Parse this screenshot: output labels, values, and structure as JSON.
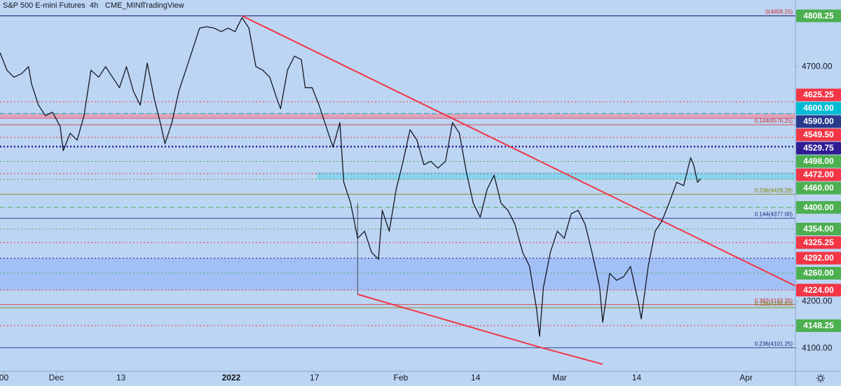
{
  "chart_data": {
    "type": "line",
    "title": "S&P 500 E-mini Futures",
    "subtitle": [
      "4h",
      "CME_MINI",
      "TradingView"
    ],
    "color": "#131722",
    "x": [
      -7.3,
      -6.4,
      -5.5,
      -4.5,
      -3.6,
      -3.2,
      -2.3,
      -1.4,
      -0.5,
      0.5,
      0.9,
      1.8,
      2.7,
      3.6,
      4.5,
      5.5,
      6.4,
      7.3,
      8.2,
      9.1,
      10,
      10.9,
      11.8,
      12.7,
      13.6,
      14.1,
      15,
      15.9,
      16.8,
      17.7,
      18.6,
      19.5,
      20.5,
      21.4,
      22.3,
      23.2,
      24.1,
      25,
      25.9,
      26.8,
      27.7,
      28.6,
      29.1,
      30,
      30.9,
      31.8,
      32.3,
      33.2,
      34.1,
      35,
      35.9,
      36.8,
      37.3,
      38.2,
      39.1,
      40,
      40.9,
      41.8,
      42.3,
      43.2,
      44.1,
      45,
      45.9,
      46.8,
      47.7,
      48.6,
      49.5,
      50.5,
      51.4,
      52.3,
      53.2,
      54.1,
      55,
      55.9,
      56.8,
      57.7,
      58.6,
      59.5,
      60.5,
      61.4,
      62.3,
      62.7,
      63.2,
      64.1,
      65,
      65.9,
      66.8,
      67.7,
      68.6,
      69.5,
      70.5,
      70.9,
      71.8,
      72.7,
      73.6,
      74.5,
      75.5,
      75.9,
      76.8,
      77.7,
      78.6,
      79.5,
      80.5,
      81.4,
      82.3,
      82.7,
      83.2,
      83.6
    ],
    "values": [
      4730,
      4692.5,
      4677.6,
      4685,
      4700,
      4662.7,
      4617.9,
      4595.5,
      4603,
      4573.1,
      4520.9,
      4558.2,
      4543.3,
      4595.5,
      4692.5,
      4677.6,
      4700,
      4677.6,
      4655.2,
      4700,
      4647.8,
      4617.9,
      4707.5,
      4632.8,
      4573.1,
      4535.8,
      4580.6,
      4647.8,
      4692.5,
      4737.3,
      4782.1,
      4785.1,
      4782.1,
      4774.6,
      4782.1,
      4774.6,
      4804.5,
      4782.1,
      4700,
      4692.5,
      4677.6,
      4632.8,
      4610.4,
      4692.5,
      4722.4,
      4714.9,
      4655.2,
      4655.2,
      4617.9,
      4573.1,
      4528.4,
      4580.6,
      4453.7,
      4409,
      4334.3,
      4349.3,
      4304.5,
      4289.6,
      4394,
      4349.3,
      4438.8,
      4498.5,
      4565.7,
      4543.3,
      4491,
      4498.5,
      4483.6,
      4498.5,
      4580.6,
      4558.2,
      4476.1,
      4409,
      4379.1,
      4438.8,
      4468.7,
      4409,
      4394,
      4364.2,
      4304.5,
      4274.6,
      4185.1,
      4125.4,
      4229.9,
      4304.5,
      4349.3,
      4334.3,
      4386.6,
      4394,
      4364.2,
      4304.5,
      4229.9,
      4155.2,
      4259.7,
      4244.8,
      4252.2,
      4274.6,
      4200,
      4162.7,
      4274.6,
      4349.3,
      4371.7,
      4409,
      4453.7,
      4446.3,
      4506,
      4491,
      4453.7,
      4461.2
    ],
    "xlim": [
      -7.3,
      95.9
    ],
    "ylim": [
      4051,
      4842
    ],
    "xticks": [
      {
        "value": -6.8,
        "label": "00"
      },
      {
        "value": 0,
        "label": "Dec"
      },
      {
        "value": 8.4,
        "label": "13"
      },
      {
        "value": 22.7,
        "label": "2022"
      },
      {
        "value": 33.5,
        "label": "17"
      },
      {
        "value": 44.7,
        "label": "Feb"
      },
      {
        "value": 54.4,
        "label": "14"
      },
      {
        "value": 65.3,
        "label": "Mar"
      },
      {
        "value": 75.3,
        "label": "14"
      },
      {
        "value": 89.5,
        "label": "Apr"
      }
    ],
    "yticks": [
      {
        "value": 4100,
        "label": "4100.00"
      },
      {
        "value": 4200,
        "label": "4200.00"
      },
      {
        "value": 4700,
        "label": "4700.00"
      }
    ],
    "grid": false,
    "zones": [
      {
        "from": 4224,
        "to": 4292,
        "color": "#9dbcf6",
        "x_from": -7.3
      },
      {
        "from": 4460,
        "to": 4475,
        "color": "#7fd3ee",
        "x_from": 33.8
      },
      {
        "from": 4590,
        "to": 4600,
        "color": "#e59aae",
        "x_from": -7.3
      }
    ],
    "levels": [
      {
        "value": 4808.25,
        "label": "4808.25",
        "label_color": "#4caf50",
        "line_color": "#1a237e",
        "style": "solid"
      },
      {
        "value": 4625.25,
        "label": "4625.25",
        "label_color": "#f23645",
        "line_color": "#f23645",
        "style": "dotted"
      },
      {
        "value": 4600,
        "label": "4600.00",
        "label_color": "#00bcd4",
        "line_color": "#00acc1",
        "style": "dashed"
      },
      {
        "value": 4590,
        "label": "4590.00",
        "label_color": "#2a3a8c",
        "line_color": "#d0607e",
        "style": "solid"
      },
      {
        "value": 4549.5,
        "label": "4549.50",
        "label_color": "#f23645",
        "line_color": "#f23645",
        "style": "dotted"
      },
      {
        "value": 4529.75,
        "label": "4529.75",
        "label_color": "#311b92",
        "line_color": "#311b92",
        "style": "dotted"
      },
      {
        "value": 4498,
        "label": "4498.00",
        "label_color": "#4caf50",
        "line_color": "#4caf50",
        "style": "dotted"
      },
      {
        "value": 4472,
        "label": "4472.00",
        "label_color": "#f23645",
        "line_color": "#f23645",
        "style": "dotted"
      },
      {
        "value": 4460,
        "label": "4460.00",
        "label_color": "#4caf50",
        "line_color": "#4caf50",
        "style": "dotted"
      },
      {
        "value": 4400,
        "label": "4400.00",
        "label_color": "#4caf50",
        "line_color": "#4caf50",
        "style": "dashed"
      },
      {
        "value": 4354,
        "label": "4354.00",
        "label_color": "#4caf50",
        "line_color": "#4caf50",
        "style": "dotted"
      },
      {
        "value": 4325.25,
        "label": "4325.25",
        "label_color": "#f23645",
        "line_color": "#f23645",
        "style": "dotted"
      },
      {
        "value": 4292,
        "label": "4292.00",
        "label_color": "#f23645",
        "line_color": "#1a237e",
        "style": "dotted"
      },
      {
        "value": 4260,
        "label": "4260.00",
        "label_color": "#4caf50",
        "line_color": "#4caf50",
        "style": "dotted"
      },
      {
        "value": 4224,
        "label": "4224.00",
        "label_color": "#f23645",
        "line_color": "#f23645",
        "style": "dotted"
      },
      {
        "value": 4148.25,
        "label": "4148.25",
        "label_color": "#4caf50",
        "line_color": "#f23645",
        "style": "dotted"
      }
    ],
    "fib_labels": [
      {
        "text": "0(4808.25)",
        "value": 4808.25,
        "color": "#d32f2f"
      },
      {
        "text": "0.144(4576.25)",
        "value": 4576.25,
        "color": "#d32f2f"
      },
      {
        "text": "0.236(4428.28)",
        "value": 4428.28,
        "color": "#808000"
      },
      {
        "text": "0.144(4377.00)",
        "value": 4377,
        "color": "#1a237e"
      },
      {
        "text": "0.382(4193.25)",
        "value": 4193.25,
        "color": "#d32f2f"
      },
      {
        "text": "0.236(4186.50)",
        "value": 4186.5,
        "color": "#808000"
      },
      {
        "text": "0.236(4101.25)",
        "value": 4101.25,
        "color": "#1a237e"
      }
    ],
    "trendlines": [
      {
        "x": [
          24.1,
          95.9
        ],
        "values": [
          4808.25,
          4232.8
        ],
        "color": "#f23645"
      },
      {
        "x": [
          39.1,
          62.6,
          70.9
        ],
        "values": [
          4215,
          4103,
          4066
        ],
        "color": "#f23645"
      },
      {
        "x": [
          39.1,
          39.1
        ],
        "values": [
          4409,
          4215
        ],
        "color": "#434651"
      }
    ]
  }
}
